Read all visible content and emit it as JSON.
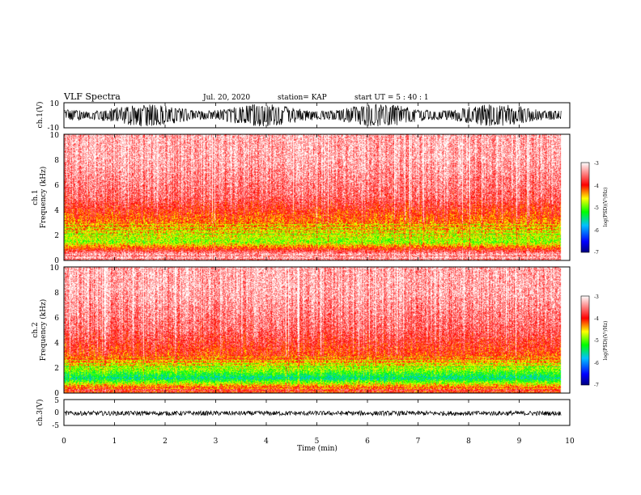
{
  "chart_data": {
    "type": "heatmap",
    "title": "VLF Spectra",
    "date": "Jul. 20, 2020",
    "station": "station= KAP",
    "start_ut": "start UT =  5 : 40 : 1",
    "xlabel": "Time (min)",
    "xlim": [
      0,
      10
    ],
    "xticks": [
      "0",
      "1",
      "2",
      "3",
      "4",
      "5",
      "6",
      "7",
      "8",
      "9",
      "10"
    ],
    "data_end_min": 9.83,
    "panels": [
      {
        "id": "ch1-waveform",
        "type": "line",
        "ylabel": "ch.1(V)",
        "ylim": [
          -10,
          10
        ],
        "yticks": [
          "10",
          "-10"
        ],
        "amplitude_band": [
          -9,
          9
        ],
        "mean": 0
      },
      {
        "id": "ch1-spectrogram",
        "type": "heatmap",
        "ylabel_top": "ch.1",
        "ylabel": "Frequency (kHz)",
        "ylim": [
          0,
          10
        ],
        "yticks": [
          "0",
          "2",
          "4",
          "6",
          "8",
          "10"
        ],
        "colorbar": {
          "label": "log(PSD)(V²/Hz)",
          "range": [
            -7,
            -3
          ],
          "ticks": [
            "-3",
            "-4",
            "-5",
            "-6",
            "-7"
          ]
        },
        "intensity_profile": [
          {
            "freq_khz": 0.5,
            "log_psd": -3.3
          },
          {
            "freq_khz": 1.5,
            "log_psd": -4.9
          },
          {
            "freq_khz": 2.5,
            "log_psd": -4.4
          },
          {
            "freq_khz": 3.5,
            "log_psd": -4.1
          },
          {
            "freq_khz": 5.0,
            "log_psd": -3.6
          },
          {
            "freq_khz": 8.0,
            "log_psd": -3.3
          }
        ]
      },
      {
        "id": "ch2-spectrogram",
        "type": "heatmap",
        "ylabel_top": "ch.2",
        "ylabel": "Frequency (kHz)",
        "ylim": [
          0,
          10
        ],
        "yticks": [
          "0",
          "2",
          "4",
          "6",
          "8",
          "10"
        ],
        "colorbar": {
          "label": "log(PSD)(V²/Hz)",
          "range": [
            -7,
            -3
          ],
          "ticks": [
            "-3",
            "-4",
            "-5",
            "-6",
            "-7"
          ]
        },
        "intensity_profile": [
          {
            "freq_khz": 0.3,
            "log_psd": -3.8
          },
          {
            "freq_khz": 1.2,
            "log_psd": -5.5
          },
          {
            "freq_khz": 2.2,
            "log_psd": -4.6
          },
          {
            "freq_khz": 2.8,
            "log_psd": -4.1
          },
          {
            "freq_khz": 5.0,
            "log_psd": -3.6
          },
          {
            "freq_khz": 8.0,
            "log_psd": -3.3
          }
        ]
      },
      {
        "id": "ch3-waveform",
        "type": "line",
        "ylabel": "ch.3(V)",
        "ylim": [
          -5,
          5
        ],
        "yticks": [
          "5",
          "0",
          "-5"
        ],
        "amplitude_band": [
          -1.2,
          0.6
        ],
        "mean": -0.3
      }
    ],
    "colors": {
      "trace": "#000000",
      "background": "#ffffff"
    }
  }
}
